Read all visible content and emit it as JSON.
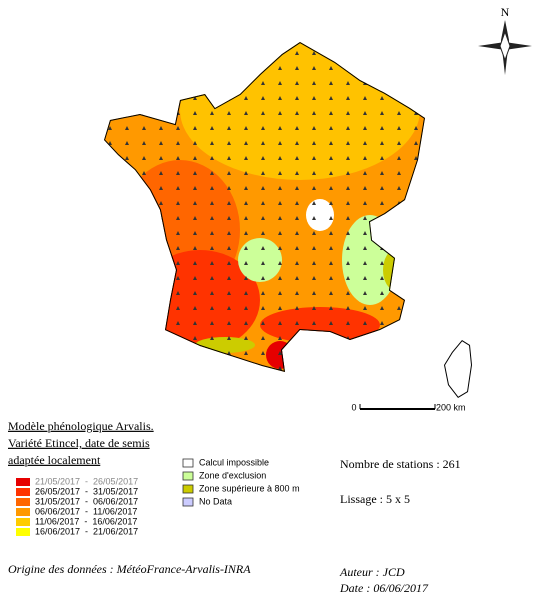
{
  "compass": {
    "label": "N"
  },
  "scale": {
    "start": "0",
    "end": "200 km"
  },
  "title": {
    "lines": [
      "Modèle phénologique Arvalis.",
      "Variété Etincel, date de semis",
      "adaptée localement"
    ]
  },
  "date_legend": [
    {
      "label": "21/05/2017  -  26/05/2017",
      "color": "#e60000"
    },
    {
      "label": "26/05/2017  -  31/05/2017",
      "color": "#ff3300"
    },
    {
      "label": "31/05/2017  -  06/06/2017",
      "color": "#ff6600"
    },
    {
      "label": "06/06/2017  -  11/06/2017",
      "color": "#ff9900"
    },
    {
      "label": "11/06/2017  -  16/06/2017",
      "color": "#ffcc00"
    },
    {
      "label": "16/06/2017  -  21/06/2017",
      "color": "#ffff00"
    }
  ],
  "zone_legend": [
    {
      "label": "Calcul impossible",
      "color": "#ffffff"
    },
    {
      "label": "Zone d'exclusion",
      "color": "#ccff99"
    },
    {
      "label": "Zone supérieure à 800 m",
      "color": "#cccc00"
    },
    {
      "label": "No Data",
      "color": "#ccccff"
    }
  ],
  "info": {
    "stations": "Nombre de stations : 261",
    "lissage": "Lissage : 5 x 5"
  },
  "footer": {
    "source": "Origine des données : MétéoFrance-Arvalis-INRA",
    "author": "Auteur : JCD",
    "date": "Date : 06/06/2017"
  }
}
